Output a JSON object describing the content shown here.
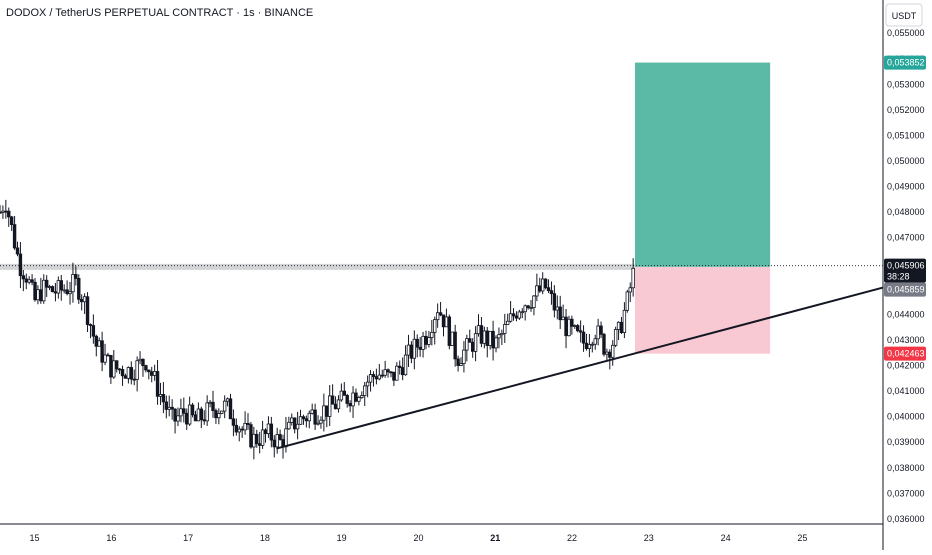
{
  "header": {
    "title": "DODOX / TetherUS PERPETUAL CONTRACT · 1s · BINANCE"
  },
  "colors": {
    "profit_zone": "#5bbaa6",
    "loss_zone": "#f9c9d3",
    "profit_tag": "#26a69a",
    "loss_tag": "#f23645",
    "candle": "#131722",
    "trendline": "#131722",
    "price_tag": "#131722",
    "entry_tag": "#787b86",
    "grid_text": "#131722"
  },
  "chart_data": {
    "type": "candlestick",
    "y_axis": {
      "unit": "USDT",
      "ylim": [
        0.0358,
        0.0563
      ],
      "tick_labels": [
        "0,055000",
        "0,054000",
        "0,053000",
        "0,052000",
        "0,051000",
        "0,050000",
        "0,049000",
        "0,048000",
        "0,047000",
        "0,046000",
        "0,045000",
        "0,044000",
        "0,043000",
        "0,042000",
        "0,041000",
        "0,040000",
        "0,039000",
        "0,038000",
        "0,037000",
        "0,036000"
      ],
      "tick_values": [
        0.055,
        0.054,
        0.053,
        0.052,
        0.051,
        0.05,
        0.049,
        0.048,
        0.047,
        0.046,
        0.045,
        0.044,
        0.043,
        0.042,
        0.041,
        0.04,
        0.039,
        0.038,
        0.037,
        0.036
      ]
    },
    "x_axis": {
      "xlim": [
        14.55,
        26.05
      ],
      "tick_labels": [
        "15",
        "16",
        "17",
        "18",
        "19",
        "20",
        "21",
        "22",
        "23",
        "24",
        "25"
      ],
      "tick_values": [
        15,
        16,
        17,
        18,
        19,
        20,
        21,
        22,
        23,
        24,
        25
      ],
      "bold_label": "21"
    },
    "price_path": [
      {
        "x": 14.55,
        "y": 0.048
      },
      {
        "x": 14.62,
        "y": 0.0485
      },
      {
        "x": 14.7,
        "y": 0.0474
      },
      {
        "x": 14.8,
        "y": 0.046
      },
      {
        "x": 14.9,
        "y": 0.0455
      },
      {
        "x": 15.0,
        "y": 0.0445
      },
      {
        "x": 15.1,
        "y": 0.045
      },
      {
        "x": 15.3,
        "y": 0.0449
      },
      {
        "x": 15.55,
        "y": 0.0452
      },
      {
        "x": 15.65,
        "y": 0.0445
      },
      {
        "x": 15.8,
        "y": 0.0428
      },
      {
        "x": 16.0,
        "y": 0.0419
      },
      {
        "x": 16.25,
        "y": 0.0418
      },
      {
        "x": 16.45,
        "y": 0.0422
      },
      {
        "x": 16.65,
        "y": 0.0408
      },
      {
        "x": 16.8,
        "y": 0.0398
      },
      {
        "x": 16.95,
        "y": 0.0402
      },
      {
        "x": 17.1,
        "y": 0.0398
      },
      {
        "x": 17.3,
        "y": 0.0403
      },
      {
        "x": 17.5,
        "y": 0.0404
      },
      {
        "x": 17.7,
        "y": 0.0395
      },
      {
        "x": 17.85,
        "y": 0.0391
      },
      {
        "x": 18.05,
        "y": 0.0393
      },
      {
        "x": 18.2,
        "y": 0.039
      },
      {
        "x": 18.4,
        "y": 0.0398
      },
      {
        "x": 18.6,
        "y": 0.0401
      },
      {
        "x": 18.8,
        "y": 0.0403
      },
      {
        "x": 19.0,
        "y": 0.0406
      },
      {
        "x": 19.2,
        "y": 0.041
      },
      {
        "x": 19.45,
        "y": 0.0417
      },
      {
        "x": 19.65,
        "y": 0.0415
      },
      {
        "x": 19.9,
        "y": 0.0425
      },
      {
        "x": 20.1,
        "y": 0.0432
      },
      {
        "x": 20.25,
        "y": 0.0443
      },
      {
        "x": 20.35,
        "y": 0.0437
      },
      {
        "x": 20.5,
        "y": 0.0423
      },
      {
        "x": 20.65,
        "y": 0.0427
      },
      {
        "x": 20.8,
        "y": 0.0432
      },
      {
        "x": 21.0,
        "y": 0.0428
      },
      {
        "x": 21.15,
        "y": 0.0435
      },
      {
        "x": 21.3,
        "y": 0.0443
      },
      {
        "x": 21.5,
        "y": 0.0447
      },
      {
        "x": 21.65,
        "y": 0.0451
      },
      {
        "x": 21.8,
        "y": 0.0441
      },
      {
        "x": 21.95,
        "y": 0.0434
      },
      {
        "x": 22.15,
        "y": 0.0429
      },
      {
        "x": 22.3,
        "y": 0.0434
      },
      {
        "x": 22.45,
        "y": 0.0426
      },
      {
        "x": 22.6,
        "y": 0.0432
      },
      {
        "x": 22.72,
        "y": 0.0445
      },
      {
        "x": 22.82,
        "y": 0.0459
      }
    ],
    "trendline": {
      "x1": 18.15,
      "y1": 0.03875,
      "x2": 26.05,
      "y2": 0.04505
    },
    "position": {
      "x_start": 22.82,
      "x_end": 24.58,
      "take_profit": 0.053852,
      "entry": 0.045859,
      "stop_loss": 0.042463
    },
    "current_price": 0.045906,
    "price_labels": {
      "take_profit": "0,053852",
      "current": "0,045906",
      "countdown": "38:28",
      "entry": "0,045859",
      "stop_loss": "0,042463"
    }
  }
}
